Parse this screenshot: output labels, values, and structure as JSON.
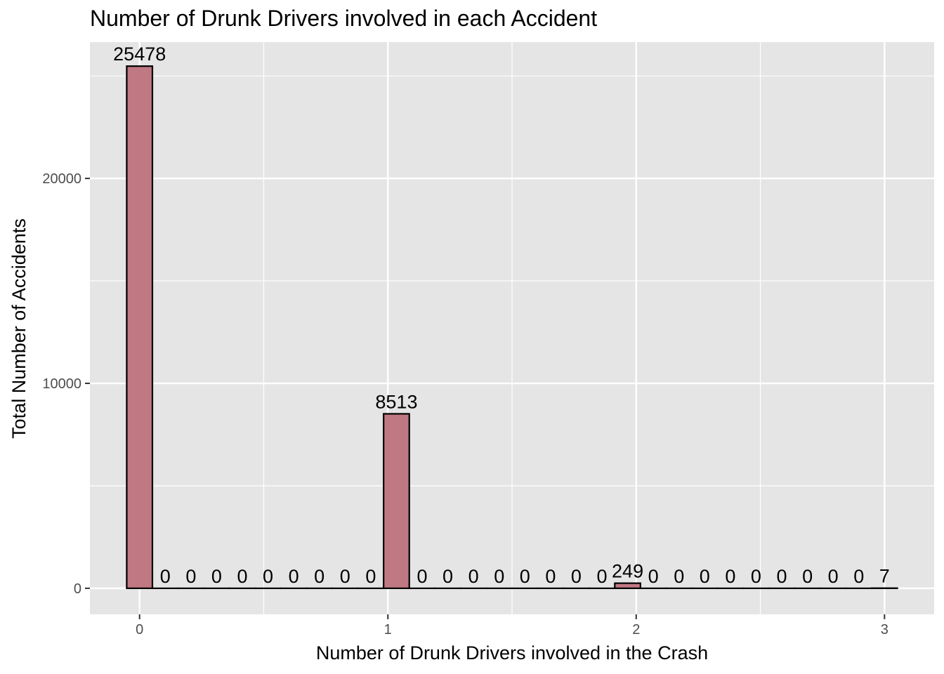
{
  "chart_data": {
    "type": "bar",
    "title": "Number of Drunk Drivers involved in each Accident",
    "xlabel": "Number of Drunk Drivers involved in the Crash",
    "ylabel": "Total Number of Accidents",
    "xlim": [
      -0.2,
      3.2
    ],
    "ylim": [
      -1270,
      26650
    ],
    "x_ticks": [
      0,
      1,
      2,
      3
    ],
    "y_ticks": [
      0,
      10000,
      20000
    ],
    "grid": true,
    "bin_width": 0.1034,
    "bin_centers": [
      0,
      0.1034,
      0.2069,
      0.3103,
      0.4138,
      0.5172,
      0.6207,
      0.7241,
      0.8276,
      0.931,
      1.0345,
      1.1379,
      1.2414,
      1.3448,
      1.4483,
      1.5517,
      1.6552,
      1.7586,
      1.8621,
      1.9655,
      2.069,
      2.1724,
      2.2759,
      2.3793,
      2.4828,
      2.5862,
      2.6897,
      2.7931,
      2.8966,
      3.0
    ],
    "values": [
      25478,
      0,
      0,
      0,
      0,
      0,
      0,
      0,
      0,
      0,
      8513,
      0,
      0,
      0,
      0,
      0,
      0,
      0,
      0,
      249,
      0,
      0,
      0,
      0,
      0,
      0,
      0,
      0,
      0,
      7
    ],
    "colors": {
      "bar_fill": "#c07882",
      "bar_stroke": "#000000",
      "panel": "#e5e5e5",
      "grid": "#ffffff"
    }
  }
}
